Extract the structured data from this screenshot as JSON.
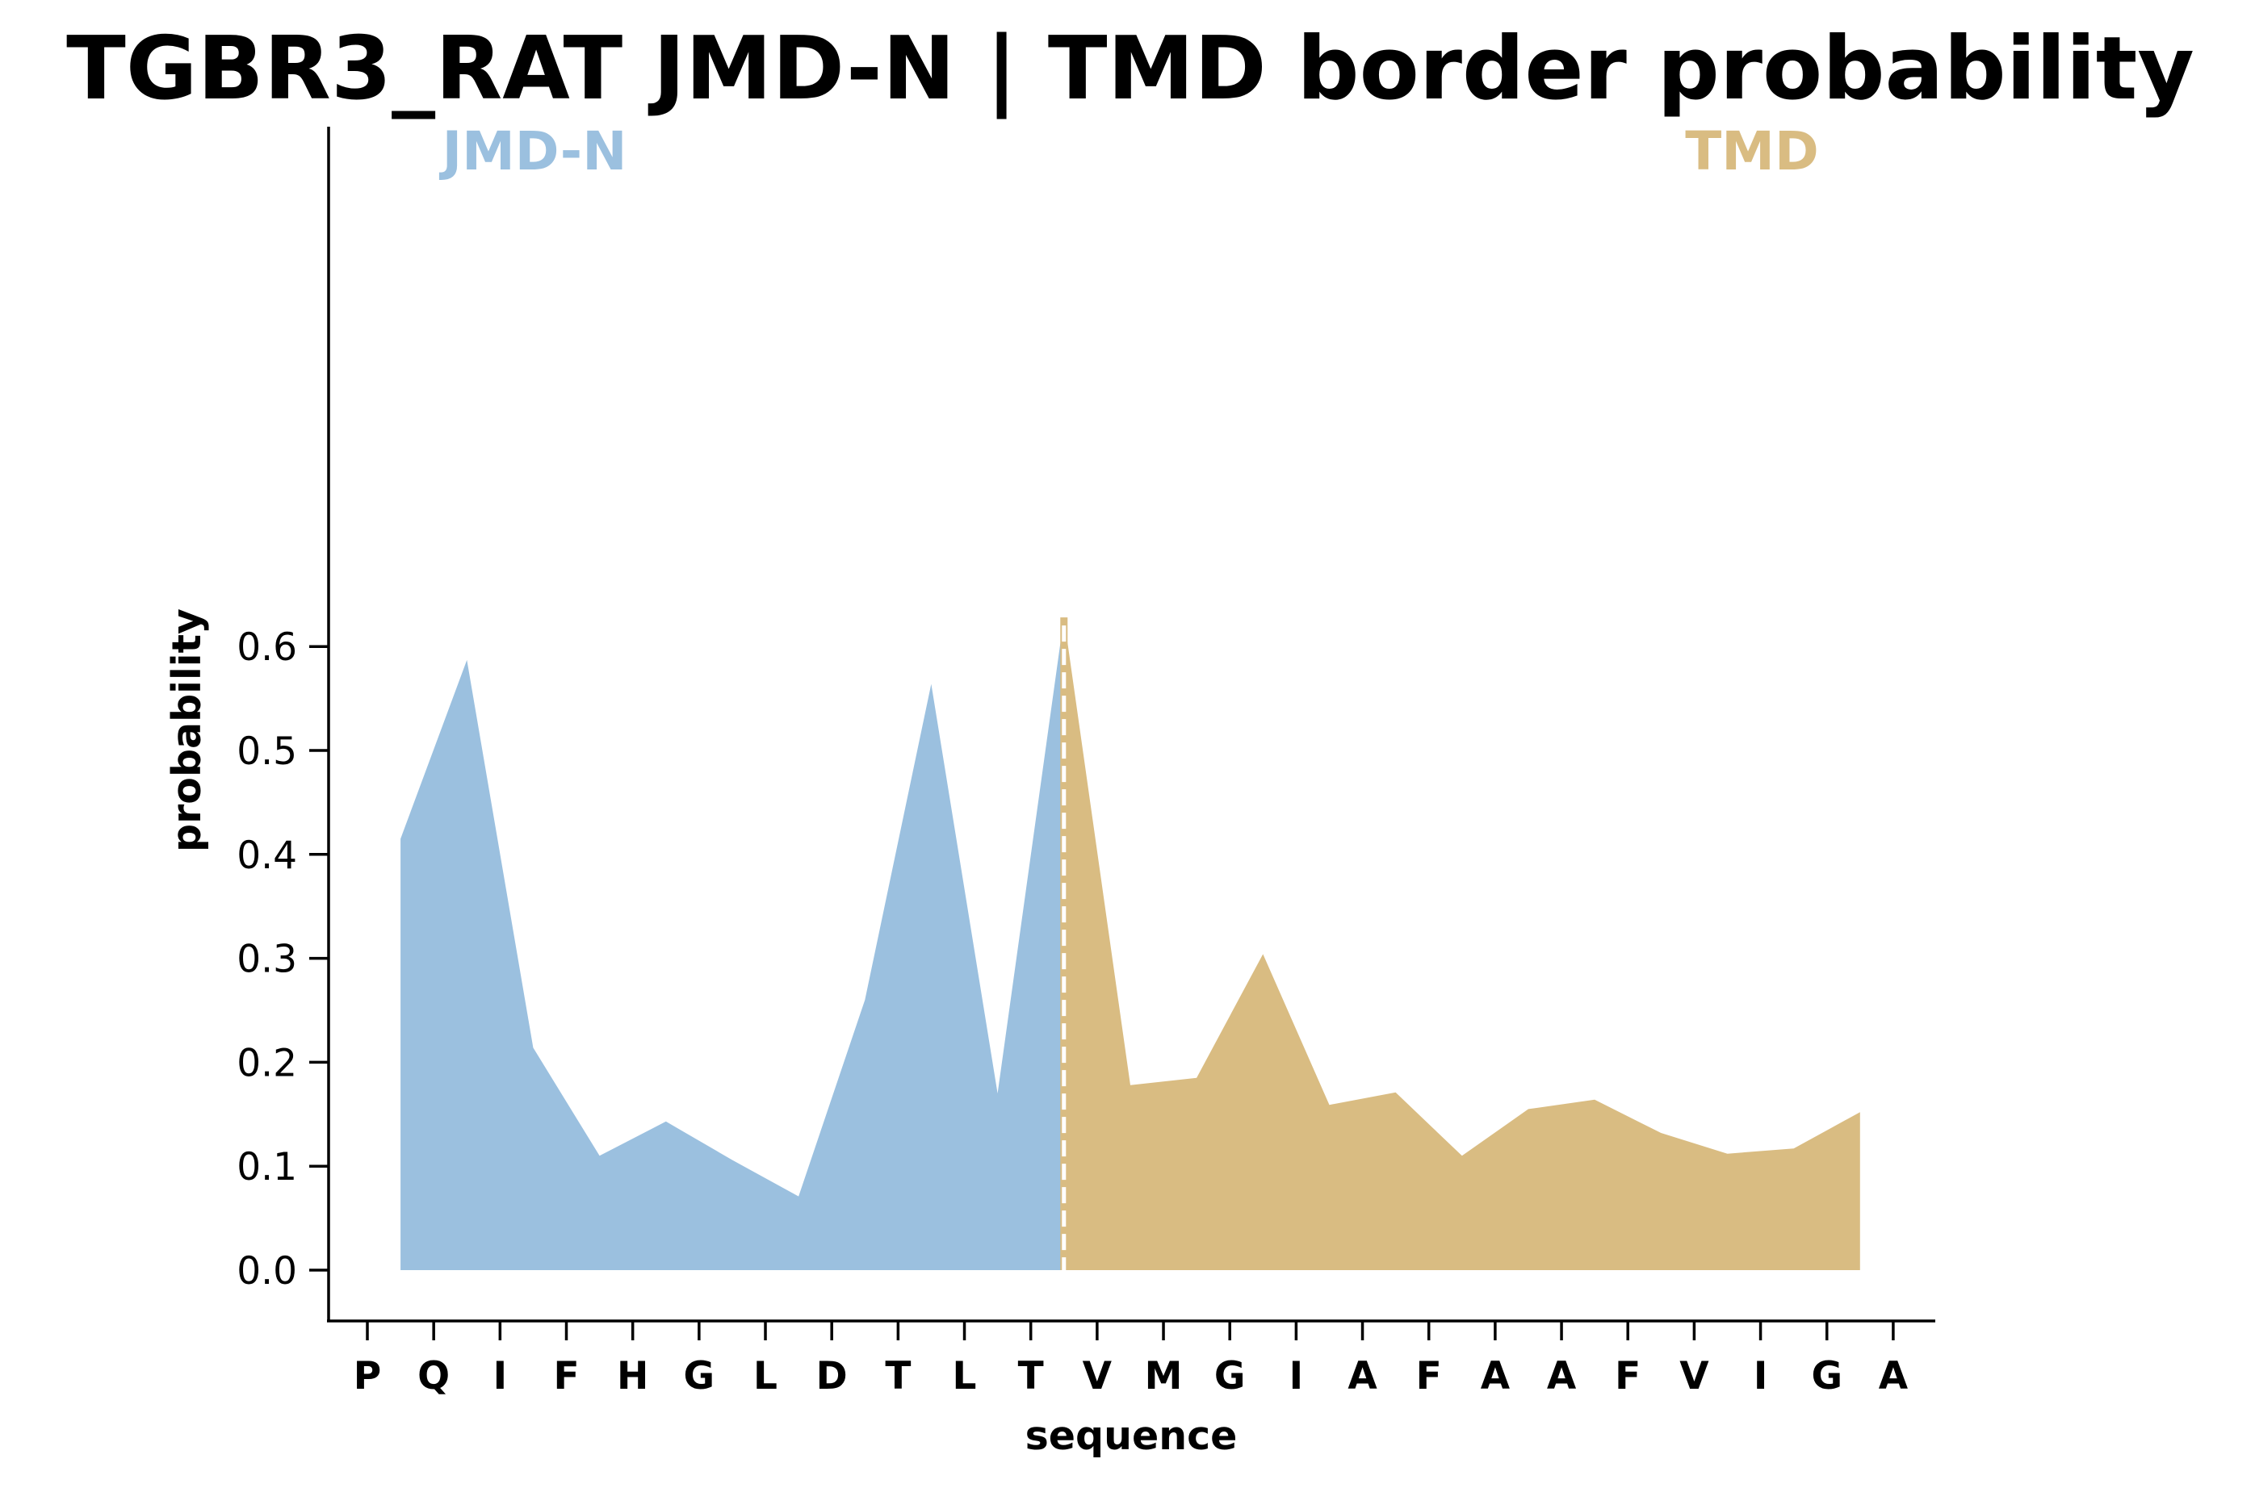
{
  "chart_data": {
    "type": "area",
    "title": "TGBR3_RAT JMD-N | TMD border probability",
    "xlabel": "sequence",
    "ylabel": "probability",
    "ylim": [
      -0.03,
      0.66
    ],
    "yticks": [
      "0.0",
      "0.1",
      "0.2",
      "0.3",
      "0.4",
      "0.5",
      "0.6"
    ],
    "categories": [
      "P",
      "Q",
      "I",
      "F",
      "H",
      "G",
      "L",
      "D",
      "T",
      "L",
      "T",
      "V",
      "M",
      "G",
      "I",
      "A",
      "F",
      "A",
      "A",
      "F",
      "V",
      "I",
      "G",
      "A"
    ],
    "grid": false,
    "regions": [
      {
        "name": "JMD-N",
        "color": "#9bc0df",
        "x_start": 0.5,
        "x_end": 10.5
      },
      {
        "name": "TMD",
        "color": "#d9bc82",
        "x_start": 10.5,
        "x_end": 22.5
      }
    ],
    "border_x": 10.5,
    "series": [
      {
        "values": [
          [
            0.5,
            0.415
          ],
          [
            1.5,
            0.587
          ],
          [
            2.5,
            0.214
          ],
          [
            3.5,
            0.11
          ],
          [
            4.5,
            0.143
          ],
          [
            5.5,
            0.106
          ],
          [
            6.5,
            0.071
          ],
          [
            7.5,
            0.26
          ],
          [
            8.5,
            0.564
          ],
          [
            9.5,
            0.17
          ],
          [
            10.5,
            0.628
          ]
        ]
      },
      {
        "values": [
          [
            10.5,
            0.628
          ],
          [
            11.5,
            0.178
          ],
          [
            12.5,
            0.185
          ],
          [
            13.5,
            0.304
          ],
          [
            14.5,
            0.159
          ],
          [
            15.5,
            0.171
          ],
          [
            16.5,
            0.11
          ],
          [
            17.5,
            0.155
          ],
          [
            18.5,
            0.164
          ],
          [
            19.5,
            0.132
          ],
          [
            20.5,
            0.112
          ],
          [
            21.5,
            0.117
          ],
          [
            22.5,
            0.152
          ]
        ]
      }
    ]
  }
}
